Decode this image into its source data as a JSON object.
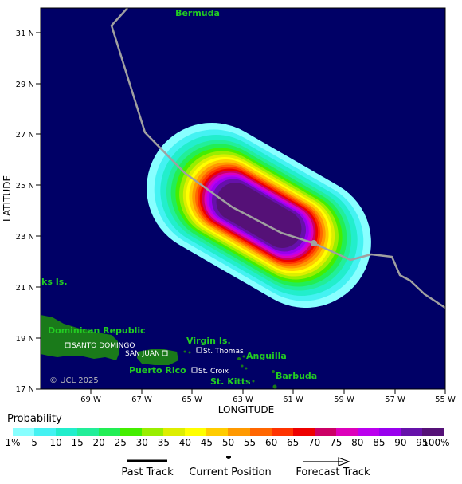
{
  "map": {
    "labels": {
      "bermuda": "Bermuda",
      "turks": "ks Is.",
      "dominican_republic": "Dominican Republic",
      "santo_domingo": "SANTO DOMINGO",
      "san_juan": "SAN JUAN",
      "puerto_rico": "Puerto Rico",
      "virgin_islands": "Virgin Is.",
      "st_thomas": "St. Thomas",
      "st_croix": "St. Croix",
      "anguilla": "Anguilla",
      "st_kitts": "St. Kitts",
      "barbuda": "Barbuda",
      "copyright": "© UCL 2025"
    },
    "x_axis": {
      "title": "LONGITUDE",
      "ticks": [
        "69 W",
        "67 W",
        "65 W",
        "63 W",
        "61 W",
        "59 W",
        "57 W",
        "55 W"
      ]
    },
    "y_axis": {
      "title": "LATITUDE",
      "ticks": [
        "31 N",
        "29 N",
        "27 N",
        "25 N",
        "23 N",
        "21 N",
        "19 N",
        "17 N"
      ]
    },
    "colors": {
      "ocean": "#000066",
      "land": "#1a7a1a",
      "track": "#a0a0a0",
      "label_green": "#22cc22"
    }
  },
  "legend": {
    "title": "Probability",
    "labels": [
      "1%",
      "5",
      "10",
      "15",
      "20",
      "25",
      "30",
      "35",
      "40",
      "45",
      "50",
      "55",
      "60",
      "65",
      "70",
      "75",
      "80",
      "85",
      "90",
      "95",
      "100%"
    ],
    "colors": [
      "#88ffff",
      "#44f2f2",
      "#22eecc",
      "#22ee99",
      "#22ee55",
      "#44ee00",
      "#99ee00",
      "#ddee00",
      "#ffff00",
      "#ffcc00",
      "#ff9900",
      "#ff6600",
      "#ff3300",
      "#ee0000",
      "#cc0066",
      "#dd00bb",
      "#bb00ee",
      "#9900ee",
      "#6611aa",
      "#551177"
    ]
  },
  "key": {
    "past_track": "Past Track",
    "current_position": "Current Position",
    "forecast_track": "Forecast Track"
  }
}
